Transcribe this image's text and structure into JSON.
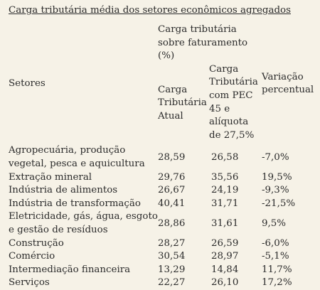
{
  "title": "Carga tributária média dos setores econômicos agregados",
  "table": {
    "header": {
      "sectors": "Setores",
      "group": "Carga tributária sobre faturamento (%)",
      "current": "Carga Tributária Atual",
      "pec": "Carga Tributária com PEC 45 e alíquota de 27,5%",
      "variation": "Variação percentual"
    },
    "rows": [
      [
        "Agropecuária, produção vegetal, pesca e aquicultura",
        "28,59",
        "26,58",
        "-7,0%"
      ],
      [
        "Extração mineral",
        "29,76",
        "35,56",
        "19,5%"
      ],
      [
        "Indústria de alimentos",
        "26,67",
        "24,19",
        "-9,3%"
      ],
      [
        "Indústria de transformação",
        "40,41",
        "31,71",
        "-21,5%"
      ],
      [
        "Eletricidade, gás, água, esgoto e gestão de resíduos",
        "28,86",
        "31,61",
        "9,5%"
      ],
      [
        "Construção",
        "28,27",
        "26,59",
        "-6,0%"
      ],
      [
        "Comércio",
        "30,54",
        "28,97",
        "-5,1%"
      ],
      [
        "Intermediação financeira",
        "13,29",
        "14,84",
        "11,7%"
      ],
      [
        "Serviços",
        "22,27",
        "26,10",
        "17,2%"
      ]
    ]
  }
}
